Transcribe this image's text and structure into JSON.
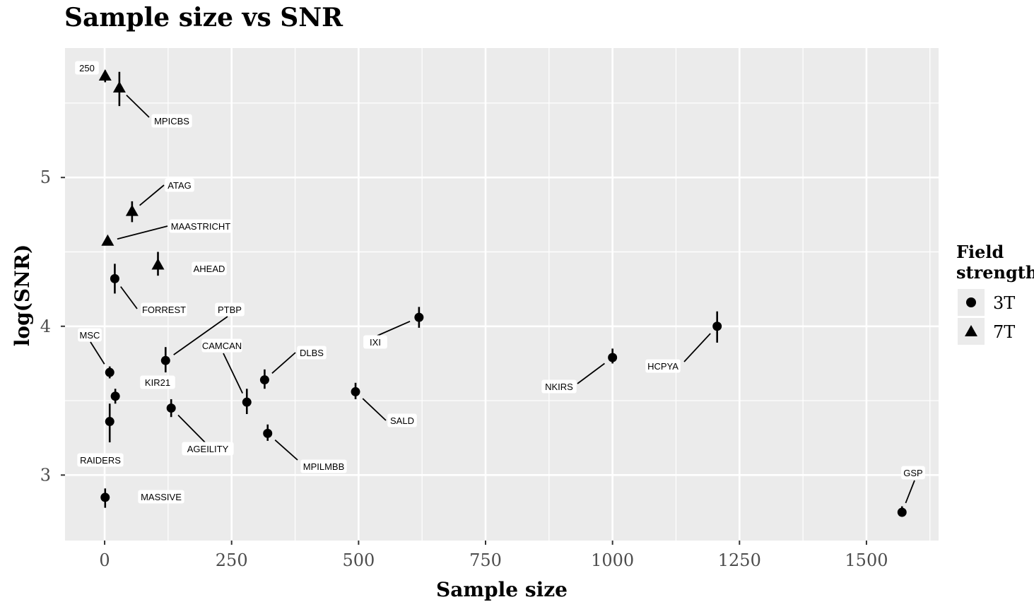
{
  "chart_data": {
    "type": "scatter",
    "title": "Sample size vs SNR",
    "xlabel": "Sample size",
    "ylabel": "log(SNR)",
    "xlim": [
      -78,
      1642
    ],
    "ylim": [
      2.56,
      5.87
    ],
    "xticks": [
      0,
      250,
      500,
      750,
      1000,
      1250,
      1500
    ],
    "xtick_labels": [
      "0",
      "250",
      "500",
      "750",
      "1000",
      "1250",
      "1500"
    ],
    "yticks": [
      3,
      4,
      5
    ],
    "ytick_labels": [
      "3",
      "4",
      "5"
    ],
    "grid": true,
    "legend": {
      "title_lines": [
        "Field",
        "strength"
      ],
      "position": "right",
      "entries": [
        {
          "label": "3T",
          "shape": "circle"
        },
        {
          "label": "7T",
          "shape": "triangle"
        }
      ]
    },
    "points": [
      {
        "label": "250",
        "x": 1,
        "y": 5.68,
        "err": [
          5.64,
          5.72
        ],
        "field": "7T"
      },
      {
        "label": "MPICBS",
        "x": 29,
        "y": 5.6,
        "err": [
          5.48,
          5.71
        ],
        "field": "7T"
      },
      {
        "label": "ATAG",
        "x": 54,
        "y": 4.77,
        "err": [
          4.7,
          4.84
        ],
        "field": "7T"
      },
      {
        "label": "MAASTRICHT",
        "x": 6,
        "y": 4.57,
        "err": [
          4.56,
          4.58
        ],
        "field": "7T"
      },
      {
        "label": "AHEAD",
        "x": 105,
        "y": 4.41,
        "err": [
          4.34,
          4.5
        ],
        "field": "7T"
      },
      {
        "label": "FORREST",
        "x": 20,
        "y": 4.32,
        "err": [
          4.22,
          4.42
        ],
        "field": "3T"
      },
      {
        "label": "PTBP",
        "x": 120,
        "y": 3.77,
        "err": [
          3.69,
          3.86
        ],
        "field": "3T"
      },
      {
        "label": "KIR21",
        "x": 21,
        "y": 3.53,
        "err": [
          3.48,
          3.58
        ],
        "field": "3T"
      },
      {
        "label": "MSC",
        "x": 10,
        "y": 3.69,
        "err": [
          3.65,
          3.73
        ],
        "field": "3T"
      },
      {
        "label": "RAIDERS",
        "x": 10,
        "y": 3.36,
        "err": [
          3.22,
          3.48
        ],
        "field": "3T"
      },
      {
        "label": "MASSIVE",
        "x": 1,
        "y": 2.85,
        "err": [
          2.78,
          2.91
        ],
        "field": "3T"
      },
      {
        "label": "AGEILITY",
        "x": 131,
        "y": 3.45,
        "err": [
          3.39,
          3.51
        ],
        "field": "3T"
      },
      {
        "label": "CAMCAN",
        "x": 280,
        "y": 3.49,
        "err": [
          3.41,
          3.58
        ],
        "field": "3T"
      },
      {
        "label": "DLBS",
        "x": 315,
        "y": 3.64,
        "err": [
          3.58,
          3.71
        ],
        "field": "3T"
      },
      {
        "label": "MPILMBB",
        "x": 321,
        "y": 3.28,
        "err": [
          3.23,
          3.34
        ],
        "field": "3T"
      },
      {
        "label": "SALD",
        "x": 494,
        "y": 3.56,
        "err": [
          3.51,
          3.62
        ],
        "field": "3T"
      },
      {
        "label": "IXI",
        "x": 619,
        "y": 4.06,
        "err": [
          3.99,
          4.13
        ],
        "field": "3T"
      },
      {
        "label": "NKIRS",
        "x": 1000,
        "y": 3.79,
        "err": [
          3.75,
          3.85
        ],
        "field": "3T"
      },
      {
        "label": "HCPYA",
        "x": 1206,
        "y": 4.0,
        "err": [
          3.89,
          4.1
        ],
        "field": "3T"
      },
      {
        "label": "GSP",
        "x": 1570,
        "y": 2.75,
        "err": [
          2.72,
          2.79
        ],
        "field": "3T"
      }
    ]
  }
}
